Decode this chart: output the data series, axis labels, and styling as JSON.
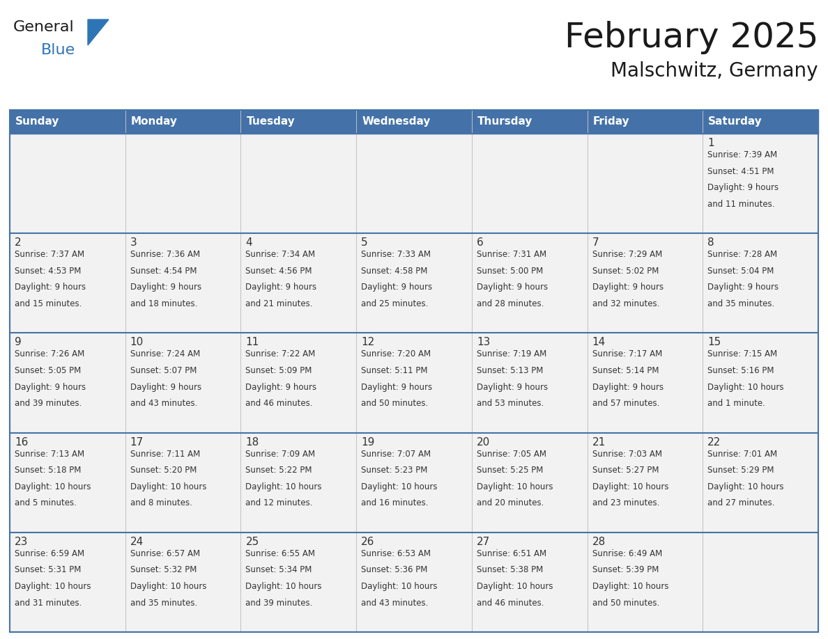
{
  "title": "February 2025",
  "subtitle": "Malschwitz, Germany",
  "header_bg_color": "#4472A8",
  "header_text_color": "#FFFFFF",
  "cell_bg_color": "#F2F2F2",
  "border_color": "#4472A8",
  "day_headers": [
    "Sunday",
    "Monday",
    "Tuesday",
    "Wednesday",
    "Thursday",
    "Friday",
    "Saturday"
  ],
  "days": [
    {
      "day": 1,
      "col": 6,
      "row": 0,
      "sunrise": "7:39 AM",
      "sunset": "4:51 PM",
      "daylight": "9 hours and 11 minutes"
    },
    {
      "day": 2,
      "col": 0,
      "row": 1,
      "sunrise": "7:37 AM",
      "sunset": "4:53 PM",
      "daylight": "9 hours and 15 minutes"
    },
    {
      "day": 3,
      "col": 1,
      "row": 1,
      "sunrise": "7:36 AM",
      "sunset": "4:54 PM",
      "daylight": "9 hours and 18 minutes"
    },
    {
      "day": 4,
      "col": 2,
      "row": 1,
      "sunrise": "7:34 AM",
      "sunset": "4:56 PM",
      "daylight": "9 hours and 21 minutes"
    },
    {
      "day": 5,
      "col": 3,
      "row": 1,
      "sunrise": "7:33 AM",
      "sunset": "4:58 PM",
      "daylight": "9 hours and 25 minutes"
    },
    {
      "day": 6,
      "col": 4,
      "row": 1,
      "sunrise": "7:31 AM",
      "sunset": "5:00 PM",
      "daylight": "9 hours and 28 minutes"
    },
    {
      "day": 7,
      "col": 5,
      "row": 1,
      "sunrise": "7:29 AM",
      "sunset": "5:02 PM",
      "daylight": "9 hours and 32 minutes"
    },
    {
      "day": 8,
      "col": 6,
      "row": 1,
      "sunrise": "7:28 AM",
      "sunset": "5:04 PM",
      "daylight": "9 hours and 35 minutes"
    },
    {
      "day": 9,
      "col": 0,
      "row": 2,
      "sunrise": "7:26 AM",
      "sunset": "5:05 PM",
      "daylight": "9 hours and 39 minutes"
    },
    {
      "day": 10,
      "col": 1,
      "row": 2,
      "sunrise": "7:24 AM",
      "sunset": "5:07 PM",
      "daylight": "9 hours and 43 minutes"
    },
    {
      "day": 11,
      "col": 2,
      "row": 2,
      "sunrise": "7:22 AM",
      "sunset": "5:09 PM",
      "daylight": "9 hours and 46 minutes"
    },
    {
      "day": 12,
      "col": 3,
      "row": 2,
      "sunrise": "7:20 AM",
      "sunset": "5:11 PM",
      "daylight": "9 hours and 50 minutes"
    },
    {
      "day": 13,
      "col": 4,
      "row": 2,
      "sunrise": "7:19 AM",
      "sunset": "5:13 PM",
      "daylight": "9 hours and 53 minutes"
    },
    {
      "day": 14,
      "col": 5,
      "row": 2,
      "sunrise": "7:17 AM",
      "sunset": "5:14 PM",
      "daylight": "9 hours and 57 minutes"
    },
    {
      "day": 15,
      "col": 6,
      "row": 2,
      "sunrise": "7:15 AM",
      "sunset": "5:16 PM",
      "daylight": "10 hours and 1 minute"
    },
    {
      "day": 16,
      "col": 0,
      "row": 3,
      "sunrise": "7:13 AM",
      "sunset": "5:18 PM",
      "daylight": "10 hours and 5 minutes"
    },
    {
      "day": 17,
      "col": 1,
      "row": 3,
      "sunrise": "7:11 AM",
      "sunset": "5:20 PM",
      "daylight": "10 hours and 8 minutes"
    },
    {
      "day": 18,
      "col": 2,
      "row": 3,
      "sunrise": "7:09 AM",
      "sunset": "5:22 PM",
      "daylight": "10 hours and 12 minutes"
    },
    {
      "day": 19,
      "col": 3,
      "row": 3,
      "sunrise": "7:07 AM",
      "sunset": "5:23 PM",
      "daylight": "10 hours and 16 minutes"
    },
    {
      "day": 20,
      "col": 4,
      "row": 3,
      "sunrise": "7:05 AM",
      "sunset": "5:25 PM",
      "daylight": "10 hours and 20 minutes"
    },
    {
      "day": 21,
      "col": 5,
      "row": 3,
      "sunrise": "7:03 AM",
      "sunset": "5:27 PM",
      "daylight": "10 hours and 23 minutes"
    },
    {
      "day": 22,
      "col": 6,
      "row": 3,
      "sunrise": "7:01 AM",
      "sunset": "5:29 PM",
      "daylight": "10 hours and 27 minutes"
    },
    {
      "day": 23,
      "col": 0,
      "row": 4,
      "sunrise": "6:59 AM",
      "sunset": "5:31 PM",
      "daylight": "10 hours and 31 minutes"
    },
    {
      "day": 24,
      "col": 1,
      "row": 4,
      "sunrise": "6:57 AM",
      "sunset": "5:32 PM",
      "daylight": "10 hours and 35 minutes"
    },
    {
      "day": 25,
      "col": 2,
      "row": 4,
      "sunrise": "6:55 AM",
      "sunset": "5:34 PM",
      "daylight": "10 hours and 39 minutes"
    },
    {
      "day": 26,
      "col": 3,
      "row": 4,
      "sunrise": "6:53 AM",
      "sunset": "5:36 PM",
      "daylight": "10 hours and 43 minutes"
    },
    {
      "day": 27,
      "col": 4,
      "row": 4,
      "sunrise": "6:51 AM",
      "sunset": "5:38 PM",
      "daylight": "10 hours and 46 minutes"
    },
    {
      "day": 28,
      "col": 5,
      "row": 4,
      "sunrise": "6:49 AM",
      "sunset": "5:39 PM",
      "daylight": "10 hours and 50 minutes"
    }
  ],
  "num_rows": 5,
  "num_cols": 7,
  "logo_triangle_color": "#2E75B6",
  "logo_general_color": "#1a1a1a",
  "logo_blue_color": "#2E75B6",
  "title_color": "#1a1a1a",
  "subtitle_color": "#1a1a1a",
  "cell_number_color": "#333333",
  "cell_text_color": "#333333"
}
